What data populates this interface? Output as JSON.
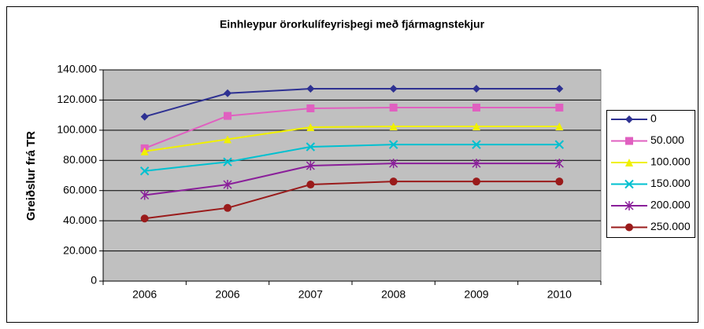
{
  "chart_data": {
    "type": "line",
    "title": "Einhleypur örorkulífeyrisþegi með fjármagnstekjur",
    "y_label": "Greiðslur frá TR",
    "categories": [
      "2006",
      "2006",
      "2007",
      "2008",
      "2009",
      "2010"
    ],
    "ylim": [
      0,
      140000
    ],
    "yticks": [
      0,
      {
        "value": 20000,
        "label": "20.000"
      },
      {
        "value": 40000,
        "label": "40.000"
      },
      {
        "value": 60000,
        "label": "60.000"
      },
      {
        "value": 80000,
        "label": "80.000"
      },
      {
        "value": 100000,
        "label": "100.000"
      },
      {
        "value": 120000,
        "label": "120.000"
      },
      {
        "value": 140000,
        "label": "140.000"
      }
    ],
    "grid": true,
    "legend": "right",
    "series": [
      {
        "name": "0",
        "color": "#2e3192",
        "marker": "diamond",
        "values": [
          109000,
          124500,
          127500,
          127500,
          127500,
          127500
        ]
      },
      {
        "name": "50.000",
        "color": "#e060c0",
        "marker": "square",
        "values": [
          88000,
          109500,
          114500,
          115000,
          115000,
          115000
        ]
      },
      {
        "name": "100.000",
        "color": "#f0f000",
        "marker": "triangle",
        "values": [
          86000,
          94000,
          102000,
          102500,
          102500,
          102500
        ]
      },
      {
        "name": "150.000",
        "color": "#00c0d0",
        "marker": "x",
        "values": [
          73000,
          79000,
          89000,
          90500,
          90500,
          90500
        ]
      },
      {
        "name": "200.000",
        "color": "#8a1f9a",
        "marker": "star",
        "values": [
          57000,
          64000,
          76500,
          78000,
          78000,
          78000
        ]
      },
      {
        "name": "250.000",
        "color": "#9a1b1b",
        "marker": "circle",
        "values": [
          41500,
          48500,
          64000,
          66000,
          66000,
          66000
        ]
      }
    ]
  }
}
